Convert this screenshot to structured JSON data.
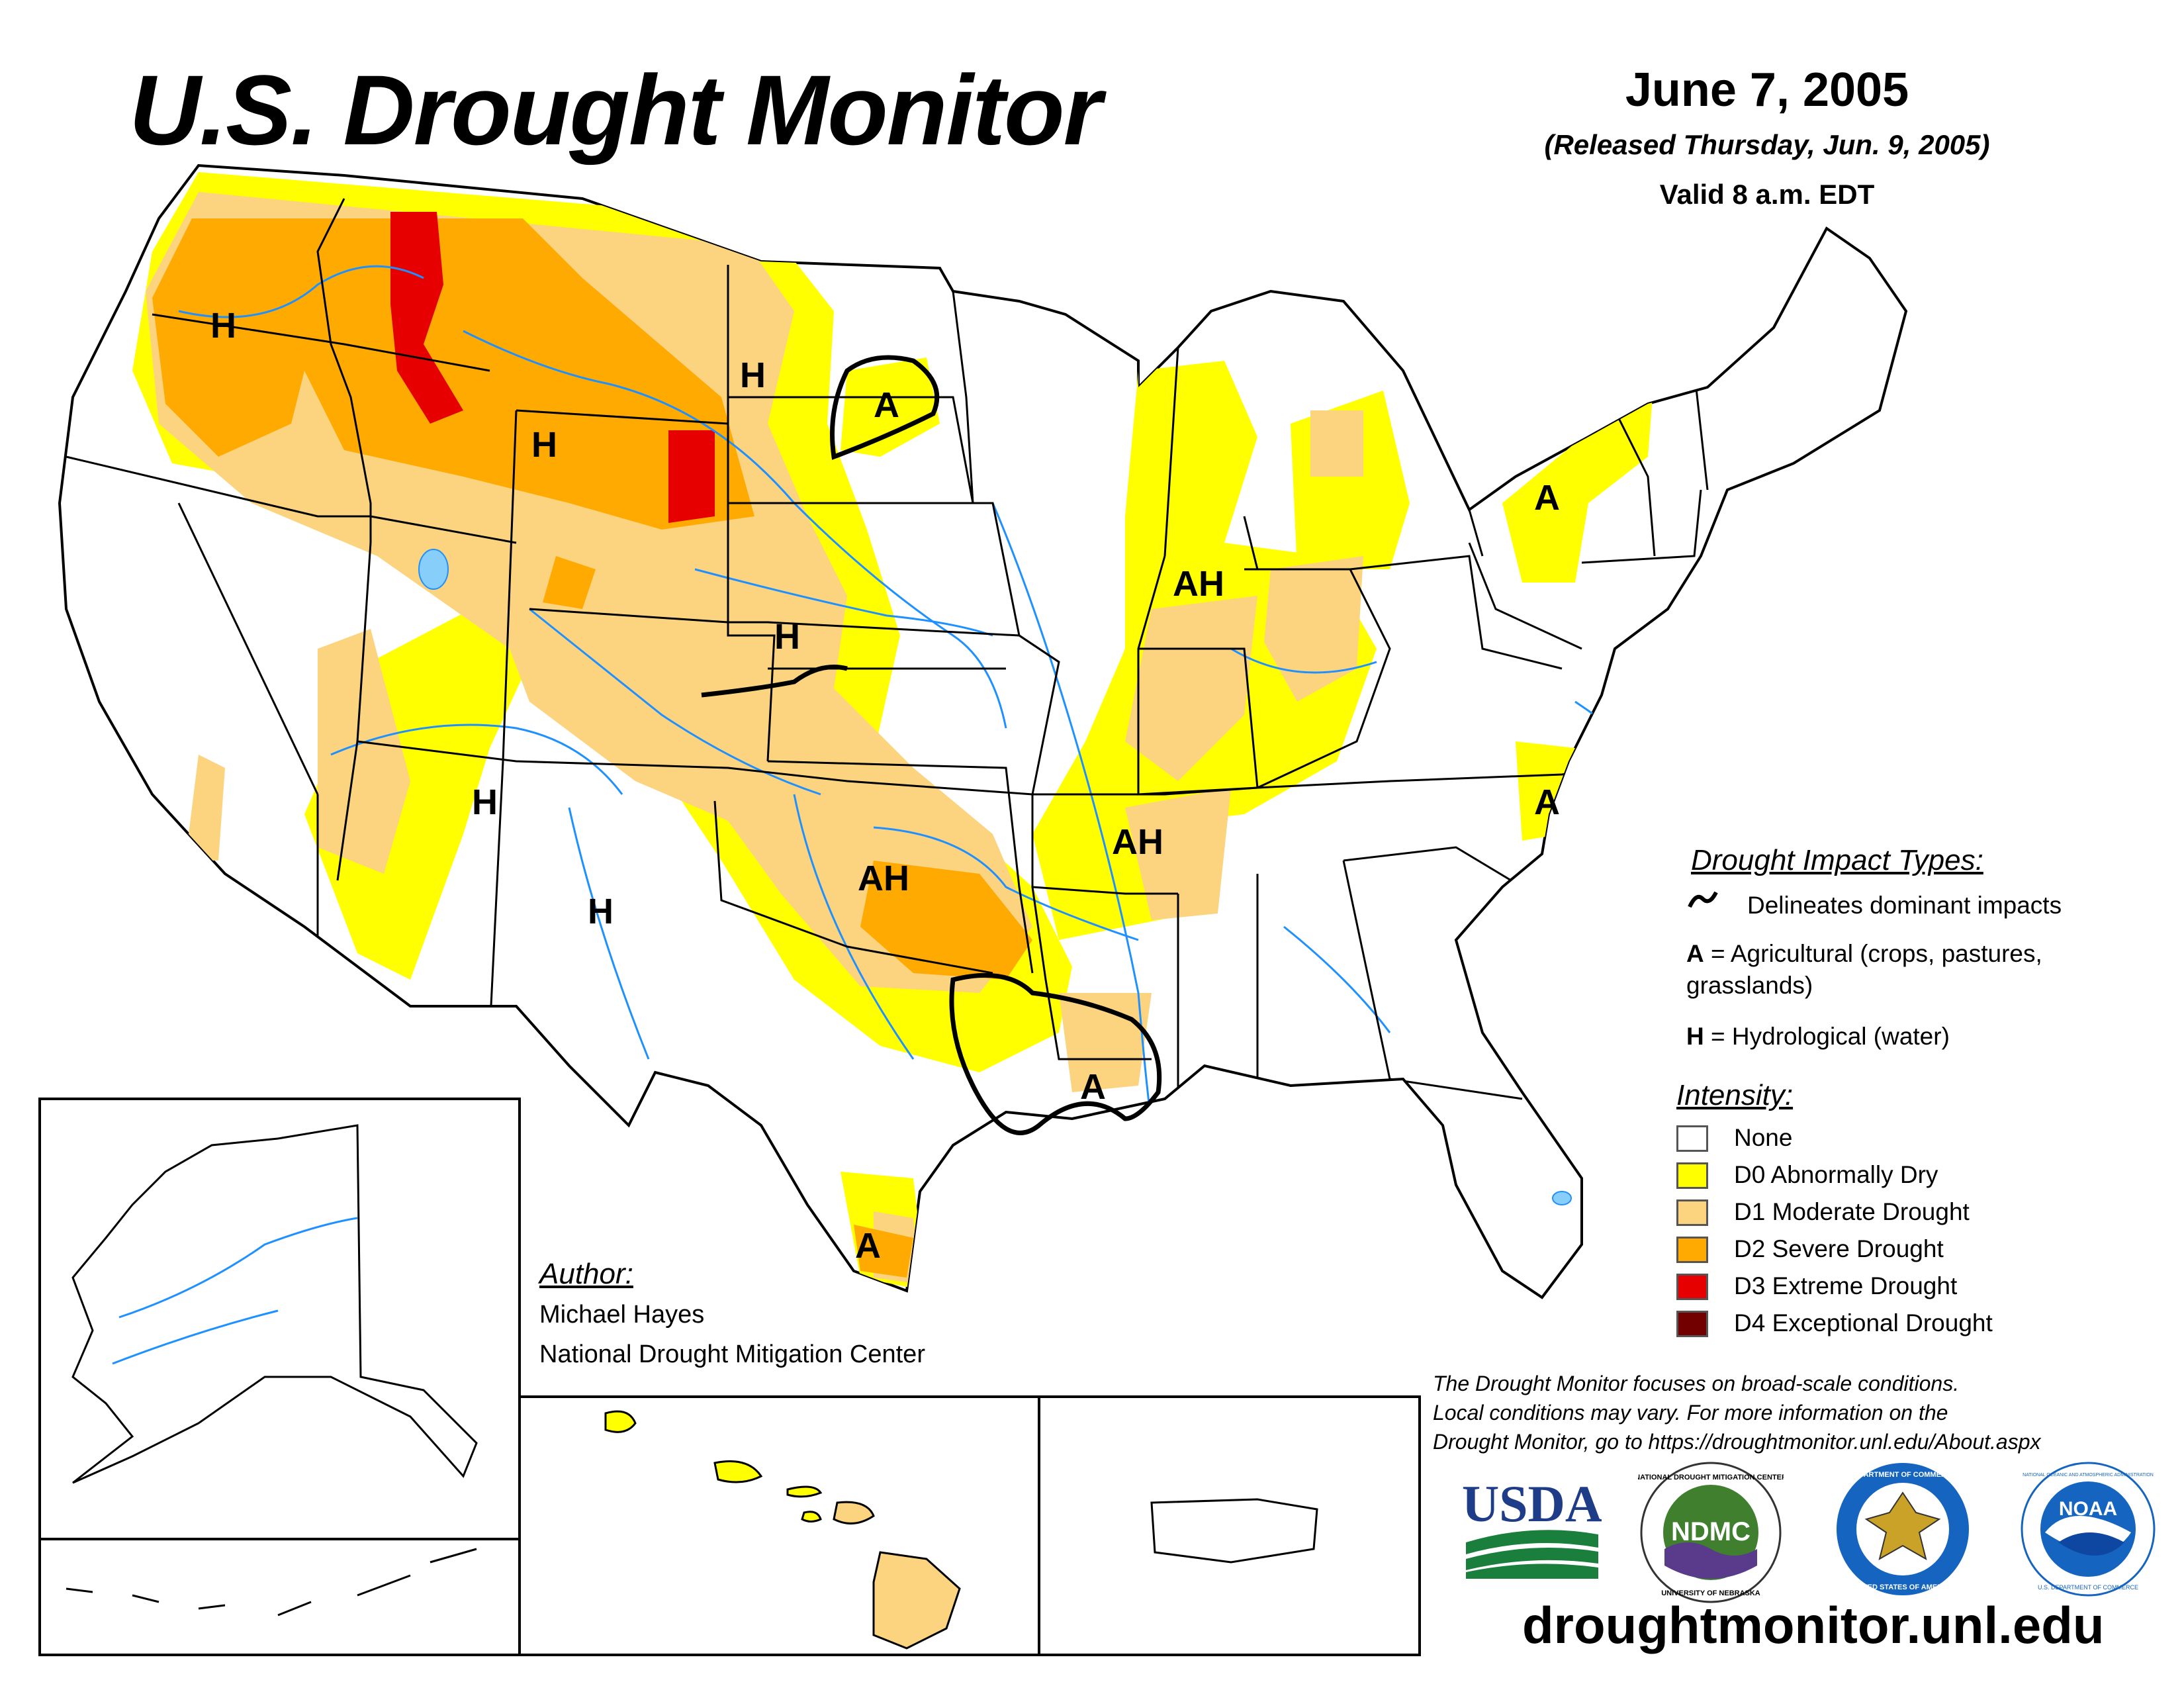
{
  "header": {
    "title": "U.S. Drought Monitor",
    "date": "June 7, 2005",
    "released": "(Released Thursday, Jun. 9, 2005)",
    "valid": "Valid 8 a.m. EDT"
  },
  "map_labels": {
    "h_pacific_nw": "H",
    "h_montana": "H",
    "a_north_dakota": "A",
    "h_wyoming": "H",
    "a_new_york": "A",
    "ah_illinois": "AH",
    "h_colorado": "H",
    "h_arizona": "H",
    "h_new_mexico": "H",
    "ah_oklahoma": "AH",
    "ah_arkansas": "AH",
    "a_north_carolina": "A",
    "a_louisiana": "A",
    "a_south_texas": "A"
  },
  "author": {
    "heading": "Author:",
    "name": "Michael Hayes",
    "organization": "National Drought Mitigation Center"
  },
  "legend": {
    "impact_heading": "Drought Impact Types:",
    "delineates": "Delineates dominant impacts",
    "a_key": "A",
    "a_desc_line1": " = Agricultural (crops, pastures,",
    "a_desc_line2": "grasslands)",
    "h_key": "H",
    "h_desc": " = Hydrological (water)",
    "intensity_heading": "Intensity:",
    "categories": [
      {
        "label": "None",
        "color": "#ffffff"
      },
      {
        "label": "D0 Abnormally Dry",
        "color": "#ffff00"
      },
      {
        "label": "D1 Moderate Drought",
        "color": "#fcd37f"
      },
      {
        "label": "D2 Severe Drought",
        "color": "#ffaa00"
      },
      {
        "label": "D3 Extreme Drought",
        "color": "#e60000"
      },
      {
        "label": "D4 Exceptional Drought",
        "color": "#730000"
      }
    ]
  },
  "disclaimer": [
    "The Drought Monitor focuses on broad-scale conditions.",
    "Local conditions may vary. For more information on the",
    "Drought Monitor, go to https://droughtmonitor.unl.edu/About.aspx"
  ],
  "logos": {
    "usda": "USDA",
    "ndmc": "NDMC",
    "ndmc_ring_top": "NATIONAL DROUGHT MITIGATION CENTER",
    "ndmc_ring_bottom": "UNIVERSITY OF NEBRASKA",
    "commerce_ring_top": "DEPARTMENT OF COMMERCE",
    "commerce_ring_bottom": "UNITED STATES OF AMERICA",
    "noaa": "NOAA",
    "noaa_ring_top": "NATIONAL OCEANIC AND ATMOSPHERIC ADMINISTRATION",
    "noaa_ring_bottom": "U.S. DEPARTMENT OF COMMERCE"
  },
  "website": "droughtmonitor.unl.edu"
}
